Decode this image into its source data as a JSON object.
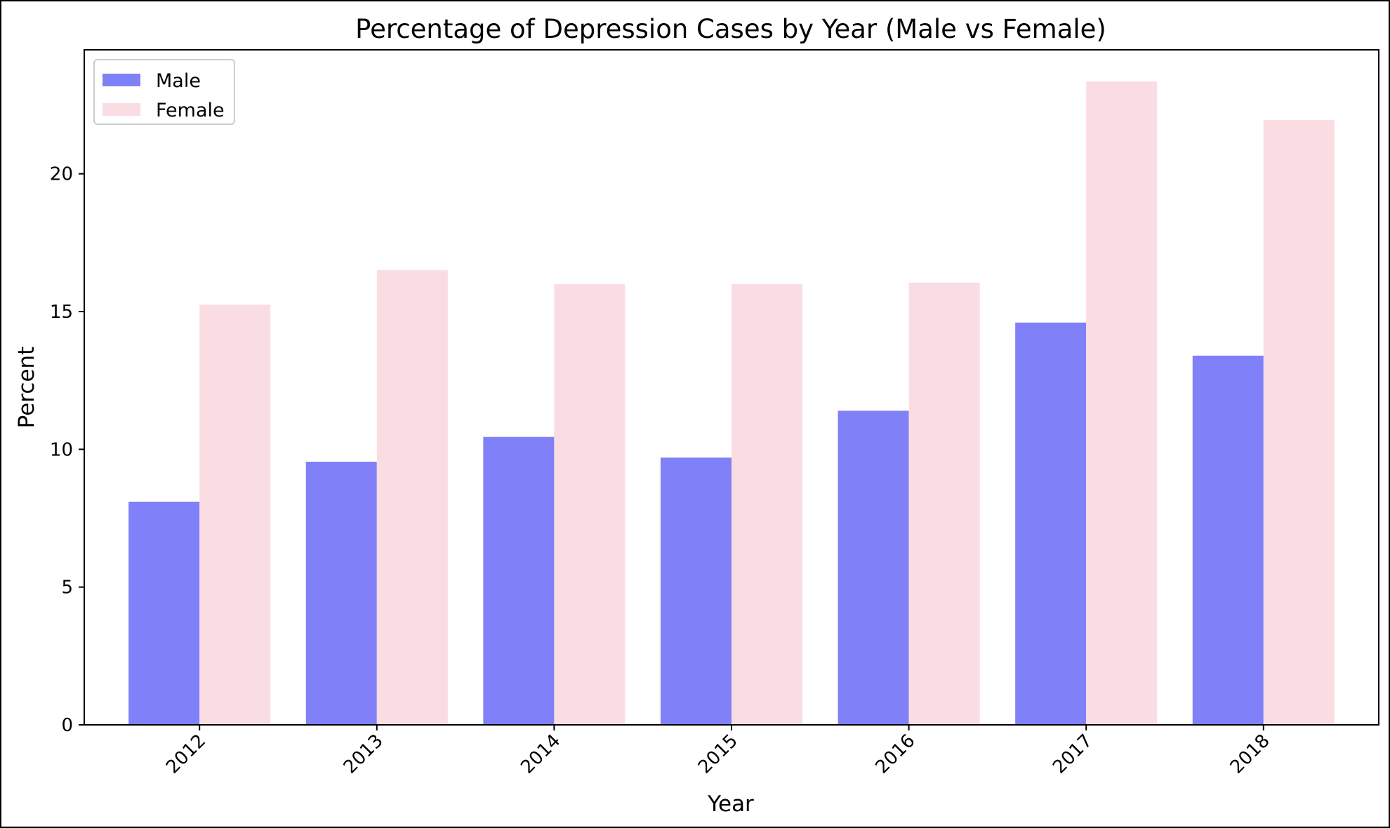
{
  "chart_data": {
    "type": "bar",
    "title": "Percentage of Depression Cases by Year (Male vs Female)",
    "xlabel": "Year",
    "ylabel": "Percent",
    "categories": [
      "2012",
      "2013",
      "2014",
      "2015",
      "2016",
      "2017",
      "2018"
    ],
    "series": [
      {
        "name": "Male",
        "color": "#8080f8",
        "values": [
          8.1,
          9.55,
          10.45,
          9.7,
          11.4,
          14.6,
          13.4
        ]
      },
      {
        "name": "Female",
        "color": "#fadde3",
        "values": [
          15.25,
          16.5,
          16.0,
          16.0,
          16.05,
          23.35,
          21.95
        ]
      }
    ],
    "ylim": [
      0,
      24.5
    ],
    "yticks": [
      0,
      5,
      10,
      15,
      20
    ],
    "grid": false,
    "legend_position": "top-left"
  }
}
